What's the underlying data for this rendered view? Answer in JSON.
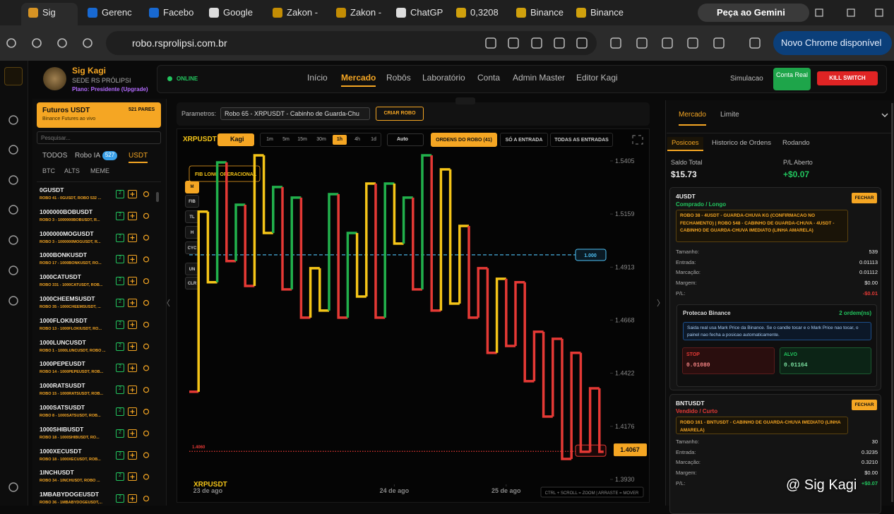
{
  "browser": {
    "tabs": [
      "Sig",
      "Gerenc",
      "Facebo",
      "Google",
      "Zakon -",
      "Zakon -",
      "ChatGP",
      "0,3208",
      "Binance",
      "Binance"
    ],
    "gemini": "Peça ao Gemini",
    "url": "robo.rsprolipsi.com.br",
    "update": "Novo Chrome disponível"
  },
  "header": {
    "name": "Sig Kagi",
    "org": "SEDE RS PRÓLIPSI",
    "plan": "Plano: Presidente (Upgrade)",
    "status": "ONLINE",
    "nav": [
      "Início",
      "Mercado",
      "Robôs",
      "Laboratório",
      "Conta",
      "Admin Master",
      "Editor Kagi"
    ],
    "mode": "Simulacao",
    "account": "Conta Real",
    "kill": "KILL SWITCH"
  },
  "markets": {
    "title": "Futuros USDT",
    "count": "521 PARES",
    "subtitle": "Binance Futures ao vivo",
    "search": "Pesquisar...",
    "tabs": [
      "TODOS",
      "Robo IA",
      "USDT"
    ],
    "robo_count": "527",
    "subtabs": [
      "BTC",
      "ALTS",
      "MEME"
    ],
    "items": [
      {
        "symbol": "0GUSDT",
        "robots": "ROBO 41 - 0GUSDT, ROBO 532 ...",
        "badge": "2"
      },
      {
        "symbol": "1000000BOBUSDT",
        "robots": "ROBO 3 - 1000000BOBUSDT, R...",
        "badge": "2"
      },
      {
        "symbol": "1000000MOGUSDT",
        "robots": "ROBO 3 - 1000000MOGUSDT, R...",
        "badge": "2"
      },
      {
        "symbol": "1000BONKUSDT",
        "robots": "ROBO 17 - 1000BONKUSDT, RO...",
        "badge": "2"
      },
      {
        "symbol": "1000CATUSDT",
        "robots": "ROBO 331 - 1000CATUSDT, ROB...",
        "badge": "2"
      },
      {
        "symbol": "1000CHEEMSUSDT",
        "robots": "ROBO 35 - 1000CHEEMSUSDT, ...",
        "badge": "2"
      },
      {
        "symbol": "1000FLOKIUSDT",
        "robots": "ROBO 13 - 1000FLOKIUSDT, RO...",
        "badge": "2"
      },
      {
        "symbol": "1000LUNCUSDT",
        "robots": "ROBO 1 - 1000LUNCUSDT, ROBO ...",
        "badge": "2"
      },
      {
        "symbol": "1000PEPEUSDT",
        "robots": "ROBO 14 - 1000PEPEUSDT, ROB...",
        "badge": "2"
      },
      {
        "symbol": "1000RATSUSDT",
        "robots": "ROBO 15 - 1000RATSUSDT, ROB...",
        "badge": "2"
      },
      {
        "symbol": "1000SATSUSDT",
        "robots": "ROBO 8 - 1000SATSUSDT, ROB...",
        "badge": "2"
      },
      {
        "symbol": "1000SHIBUSDT",
        "robots": "ROBO 18 - 1000SHIBUSDT, RO...",
        "badge": "2"
      },
      {
        "symbol": "1000XECUSDT",
        "robots": "ROBO 18 - 1000XECUSDT, ROB...",
        "badge": "2"
      },
      {
        "symbol": "1INCHUSDT",
        "robots": "ROBO 34 - 1INCHUSDT, ROBO ...",
        "badge": "2"
      },
      {
        "symbol": "1MBABYDOGEUSDT",
        "robots": "ROBO 36 - 1MBABYDOGEUSDT,...",
        "badge": "2"
      }
    ]
  },
  "toolbar": {
    "label": "Parametros:",
    "robot": "Robo 65 - XRPUSDT - Cabinho de Guarda-Chu",
    "create": "CRIAR ROBO"
  },
  "chart_bar": {
    "symbol": "XRPUSDT",
    "mode": "Kagi",
    "intervals": [
      "1m",
      "5m",
      "15m",
      "30m",
      "1h",
      "4h",
      "1d"
    ],
    "active_interval": "1h",
    "scale": "Auto",
    "filters": [
      "ORDENS DO ROBO (41)",
      "SÓ A ENTRADA",
      "TODAS AS ENTRADAS"
    ]
  },
  "tools": [
    "M",
    "FIB",
    "TL",
    "H",
    "CYC",
    "UN",
    "CLR"
  ],
  "price_chart": {
    "type": "kagi",
    "fib_label": "FIB LONG OPERACIONAL",
    "watermark": "XRPUSDT",
    "hint": "CTRL + SCROLL = ZOOM | ARRASTE = MOVER",
    "values": [
      1.4336,
      1.517,
      1.4843,
      1.5398,
      1.4941,
      1.5202,
      1.4826,
      1.5431,
      1.5071,
      1.5284,
      1.481,
      1.5235,
      1.4679,
      1.4908,
      1.4712,
      1.5251,
      1.4679,
      1.5071,
      1.4777,
      1.53,
      1.4679,
      1.53,
      1.5022,
      1.5235,
      1.481,
      1.5431,
      1.4712,
      1.5366,
      1.4744,
      1.5104,
      1.4679,
      1.4908,
      1.4516,
      1.4859,
      1.4548,
      1.4843,
      1.4385,
      1.4614,
      1.4221,
      1.4581,
      1.4025,
      1.4516,
      1.4058,
      1.4352,
      1.4058
    ],
    "colors": [
      "#e53935",
      "#f5c518",
      "#f5c518",
      "#22b14c",
      "#e53935",
      "#22b14c",
      "#e53935",
      "#f5c518",
      "#f5c518",
      "#22b14c",
      "#e53935",
      "#22b14c",
      "#e53935",
      "#f5c518",
      "#f5c518",
      "#22b14c",
      "#e53935",
      "#22b14c",
      "#f5c518",
      "#f5c518",
      "#e53935",
      "#22b14c",
      "#f5c518",
      "#22b14c",
      "#e53935",
      "#22b14c",
      "#e53935",
      "#f5c518",
      "#f5c518",
      "#f5c518",
      "#e53935",
      "#e53935",
      "#e53935",
      "#f5c518",
      "#e53935",
      "#e53935",
      "#e53935",
      "#e53935",
      "#e53935",
      "#e53935",
      "#e53935",
      "#e53935",
      "#e53935",
      "#e53935",
      "#e53935"
    ],
    "ylim": [
      1.3845,
      1.5457
    ],
    "yticks": [
      1.5405,
      1.5159,
      1.4913,
      1.4668,
      1.4422,
      1.4176,
      {
        "value": 1.393,
        "label": "1.3930"
      }
    ],
    "xlim": [
      0,
      45
    ],
    "xticks": [
      {
        "value": 2,
        "label": "23 de ago"
      },
      {
        "value": 22,
        "label": "24 de ago"
      },
      {
        "value": 34,
        "label": "25 de ago"
      }
    ],
    "levels": [
      {
        "value": 1.497,
        "label": "1.000",
        "color": "#4fc3f7"
      },
      {
        "value": 1.406,
        "label": "1.4060",
        "color": "#e53935",
        "marker": "0"
      }
    ],
    "last_price": 1.4067
  },
  "right": {
    "tabs": [
      "Mercado",
      "Limite"
    ],
    "subtabs": [
      "Posicoes",
      "Historico de Ordens",
      "Rodando"
    ],
    "balance_label": "Saldo Total",
    "balance": "$15.73",
    "pl_label": "P/L Aberto",
    "pl": "+$0.07",
    "positions": [
      {
        "symbol": "4USDT",
        "side": "Comprado / Longo",
        "close": "FECHAR",
        "robots": "ROBO 38 - 4USDT - GUARDA-CHUVA KG (CONFIRMACAO NO FECHAMENTO) | ROBO 548 - CABINHO DE GUARDA-CHUVA - 4USDT - CABINHO DE GUARDA-CHUVA IMEDIATO (LINHA AMARELA)",
        "rows": [
          [
            "Tamanho:",
            "539"
          ],
          [
            "Entrada:",
            "0.01113"
          ],
          [
            "Marcação:",
            "0.01112"
          ],
          [
            "Margem:",
            "$0.00"
          ],
          [
            "P/L:",
            "-$0.01"
          ]
        ],
        "protection": {
          "title": "Protecao Binance",
          "count": "2 ordem(ns)",
          "note": "Saida real usa Mark Price da Binance. Se o candle tocar e o Mark Price nao tocar, o painel nao fecha a posicao automaticamente.",
          "stop_label": "STOP",
          "stop": "0.01080",
          "target_label": "ALVO",
          "target": "0.01164"
        }
      },
      {
        "symbol": "BNTUSDT",
        "side": "Vendido / Curto",
        "close": "FECHAR",
        "robots": "ROBO 161 - BNTUSDT - CABINHO DE GUARDA-CHUVA IMEDIATO (LINHA AMARELA)",
        "rows": [
          [
            "Tamanho:",
            "30"
          ],
          [
            "Entrada:",
            "0.3235"
          ],
          [
            "Marcação:",
            "0.3210"
          ],
          [
            "Margem:",
            "$0.00"
          ],
          [
            "P/L:",
            "+$0.07"
          ]
        ]
      }
    ]
  },
  "watermark": "@ Sig Kagi"
}
